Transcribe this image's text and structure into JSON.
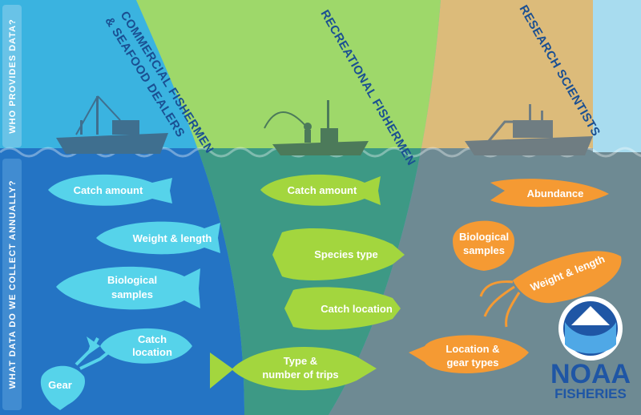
{
  "side_labels": {
    "top": "WHO PROVIDES DATA?",
    "bottom": "WHAT DATA DO WE COLLECT ANNUALLY?"
  },
  "groups": {
    "commercial": {
      "title_line1": "COMMERCIAL FISHERMEN",
      "title_line2": "& SEAFOOD DEALERS",
      "items": [
        {
          "line1": "Catch amount"
        },
        {
          "line1": "Weight & length"
        },
        {
          "line1": "Biological",
          "line2": "samples"
        },
        {
          "line1": "Catch",
          "line2": "location"
        },
        {
          "line1": "Gear"
        }
      ]
    },
    "recreational": {
      "title": "RECREATIONAL FISHERMEN",
      "items": [
        {
          "line1": "Catch amount"
        },
        {
          "line1": "Species type"
        },
        {
          "line1": "Catch location"
        },
        {
          "line1": "Type &",
          "line2": "number of trips"
        }
      ]
    },
    "research": {
      "title": "RESEARCH SCIENTISTS",
      "items": [
        {
          "line1": "Abundance"
        },
        {
          "line1": "Biological",
          "line2": "samples"
        },
        {
          "line1": "Weight & length"
        },
        {
          "line1": "Location &",
          "line2": "gear types"
        }
      ]
    }
  },
  "logo": {
    "emblem_text": "NOAA",
    "line1": "NOAA",
    "line2": "FISHERIES"
  },
  "colors": {
    "commercial_sky": "#3ab3e0",
    "commercial_water": "#2474c4",
    "recreational_sky": "#9ed86a",
    "recreational_water": "#3d9985",
    "research_sky": "#dcbb7a",
    "research_water": "#6e8a93",
    "commercial_fish": "#56d3ea",
    "recreational_fish": "#a3d63e",
    "research_fish": "#f59a33",
    "header_text": "#1a4f92",
    "logo_blue": "#1f56a5"
  }
}
